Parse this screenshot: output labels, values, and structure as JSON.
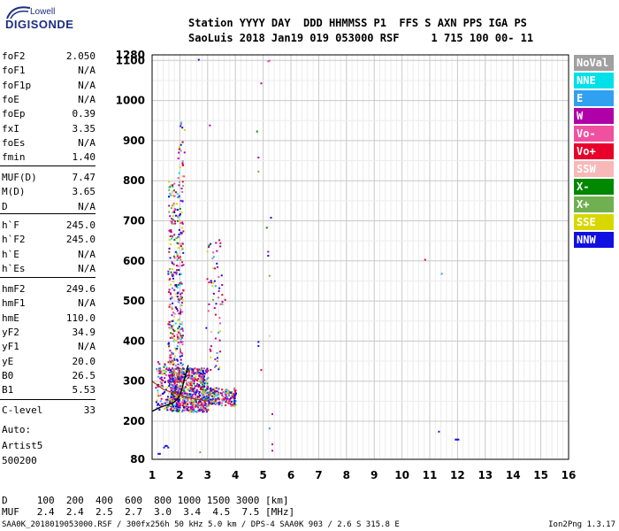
{
  "logo": {
    "top": "Lowell",
    "main": "DIGISONDE"
  },
  "header": {
    "line1": "Station YYYY DAY  DDD HHMMSS P1  FFS S AXN PPS IGA PS",
    "line2": "SaoLuis 2018 Jan19 019 053000 RSF     1 715 100 00- 11"
  },
  "params_group1": [
    {
      "name": "foF2",
      "value": "2.050"
    },
    {
      "name": "foF1",
      "value": "N/A"
    },
    {
      "name": "foF1p",
      "value": "N/A"
    },
    {
      "name": "foE",
      "value": "N/A"
    },
    {
      "name": "foEp",
      "value": "0.39"
    },
    {
      "name": "fxI",
      "value": "3.35"
    },
    {
      "name": "foEs",
      "value": "N/A"
    },
    {
      "name": "fmin",
      "value": "1.40"
    }
  ],
  "params_group2": [
    {
      "name": "MUF(D)",
      "value": "7.47"
    },
    {
      "name": "M(D)",
      "value": "3.65"
    },
    {
      "name": "D",
      "value": "N/A"
    }
  ],
  "params_group3": [
    {
      "name": "h`F",
      "value": "245.0"
    },
    {
      "name": "h`F2",
      "value": "245.0"
    },
    {
      "name": "h`E",
      "value": "N/A"
    },
    {
      "name": "h`Es",
      "value": "N/A"
    }
  ],
  "params_group4": [
    {
      "name": "hmF2",
      "value": "249.6"
    },
    {
      "name": "hmF1",
      "value": "N/A"
    },
    {
      "name": "hmE",
      "value": "110.0"
    },
    {
      "name": "yF2",
      "value": "34.9"
    },
    {
      "name": "yF1",
      "value": "N/A"
    },
    {
      "name": "yE",
      "value": "20.0"
    },
    {
      "name": "B0",
      "value": "26.5"
    },
    {
      "name": "B1",
      "value": "5.53"
    }
  ],
  "clevel": {
    "name": "C-level",
    "value": "33"
  },
  "auto": {
    "line1": "Auto:",
    "line2": "Artist5",
    "line3": "500200"
  },
  "legend": [
    {
      "label": "NoVal",
      "color": "#a0a0a0"
    },
    {
      "label": "NNE",
      "color": "#00e0e8"
    },
    {
      "label": "E",
      "color": "#30a0f0"
    },
    {
      "label": "W",
      "color": "#b000a8"
    },
    {
      "label": "Vo-",
      "color": "#f050a0"
    },
    {
      "label": "Vo+",
      "color": "#e8002a"
    },
    {
      "label": "SSW",
      "color": "#f8b8b8"
    },
    {
      "label": "X-",
      "color": "#008800"
    },
    {
      "label": "X+",
      "color": "#70b050"
    },
    {
      "label": "SSE",
      "color": "#d8d800"
    },
    {
      "label": "NNW",
      "color": "#1010e0"
    }
  ],
  "bottom": {
    "d_row": "D     100  200  400  600  800 1000 1500 3000 [km]",
    "muf_row": "MUF   2.4  2.4  2.5  2.7  3.0  3.4  4.5  7.5 [MHz]"
  },
  "footer": {
    "left": "SAA0K_2018019053000.RSF / 300fx256h 50 kHz 5.0 km / DPS-4 SAA0K 903 / 2.6 S 315.8 E",
    "right": "Ion2Png 1.3.17"
  },
  "chart_data": {
    "type": "scatter",
    "xlim": [
      1,
      16
    ],
    "ylim": [
      80,
      1280
    ],
    "xticks": [
      1,
      2,
      3,
      4,
      5,
      6,
      7,
      8,
      9,
      10,
      11,
      12,
      13,
      14,
      15,
      16
    ],
    "yticks": [
      80,
      200,
      300,
      400,
      500,
      600,
      700,
      800,
      900,
      1000,
      1100,
      1280
    ],
    "grid": true,
    "trace_F2": [
      [
        1.0,
        225
      ],
      [
        1.3,
        235
      ],
      [
        1.6,
        242
      ],
      [
        1.8,
        248
      ],
      [
        1.95,
        258
      ],
      [
        2.05,
        275
      ],
      [
        2.15,
        300
      ],
      [
        2.3,
        340
      ]
    ],
    "trace_E": [
      [
        1.0,
        300
      ],
      [
        1.2,
        290
      ],
      [
        1.4,
        280
      ],
      [
        1.7,
        272
      ],
      [
        2.1,
        262
      ],
      [
        2.6,
        255
      ],
      [
        3.0,
        250
      ]
    ]
  }
}
